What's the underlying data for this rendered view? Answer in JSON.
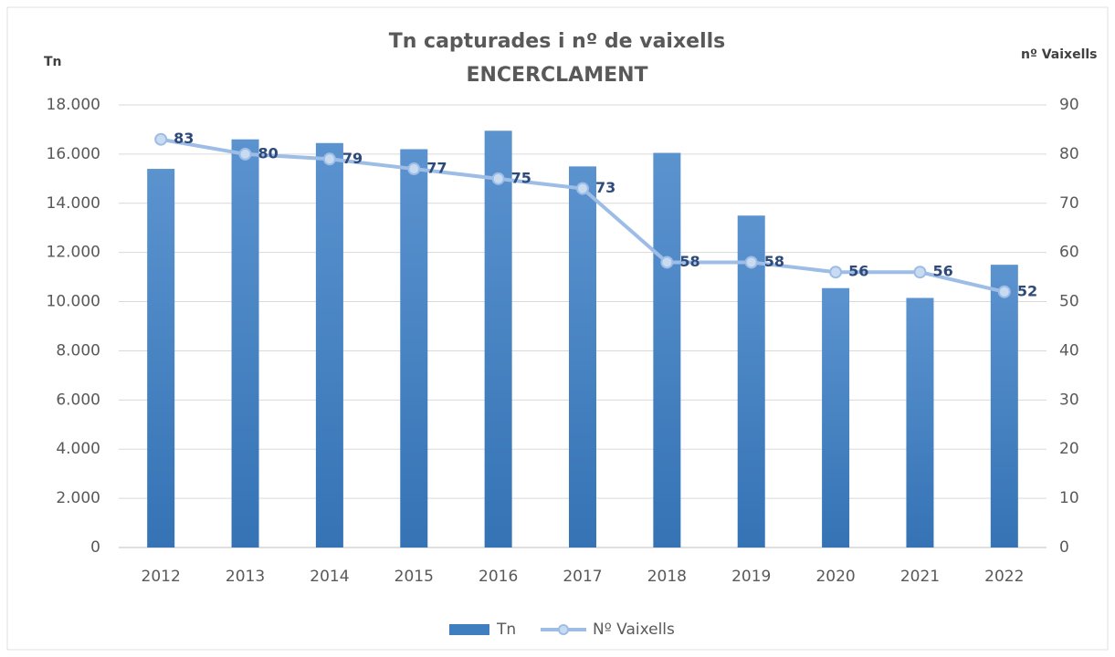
{
  "chart_data": {
    "type": "bar",
    "title": "Tn capturades i nº de vaixells",
    "subtitle": "ENCERCLAMENT",
    "y_label": "Tn",
    "y2_label": "nº Vaixells",
    "categories": [
      "2012",
      "2013",
      "2014",
      "2015",
      "2016",
      "2017",
      "2018",
      "2019",
      "2020",
      "2021",
      "2022"
    ],
    "series": [
      {
        "name": "Tn",
        "type": "bar",
        "color": "#3f7ebf",
        "values": [
          15400,
          16600,
          16450,
          16200,
          16950,
          15500,
          16050,
          13500,
          10550,
          10150,
          11500
        ]
      },
      {
        "name": "Nº Vaixells",
        "type": "line",
        "axis": "y2",
        "color": "#9dbde6",
        "values": [
          83,
          80,
          79,
          77,
          75,
          73,
          58,
          58,
          56,
          56,
          52
        ]
      }
    ],
    "ylim": [
      0,
      18000
    ],
    "yticks": [
      0,
      {
        "value": 2000,
        "label": "2.000"
      },
      {
        "value": 4000,
        "label": "4.000"
      },
      {
        "value": 6000,
        "label": "6.000"
      },
      {
        "value": 8000,
        "label": "8.000"
      },
      {
        "value": 10000,
        "label": "10.000"
      },
      {
        "value": 12000,
        "label": "12.000"
      },
      {
        "value": 14000,
        "label": "14.000"
      },
      {
        "value": 16000,
        "label": "16.000"
      },
      {
        "value": 18000,
        "label": "18.000"
      }
    ],
    "y2lim": [
      0,
      90
    ],
    "y2ticks": [
      0,
      10,
      20,
      30,
      40,
      50,
      60,
      70,
      80,
      90
    ],
    "grid": true,
    "legend": "bottom"
  }
}
